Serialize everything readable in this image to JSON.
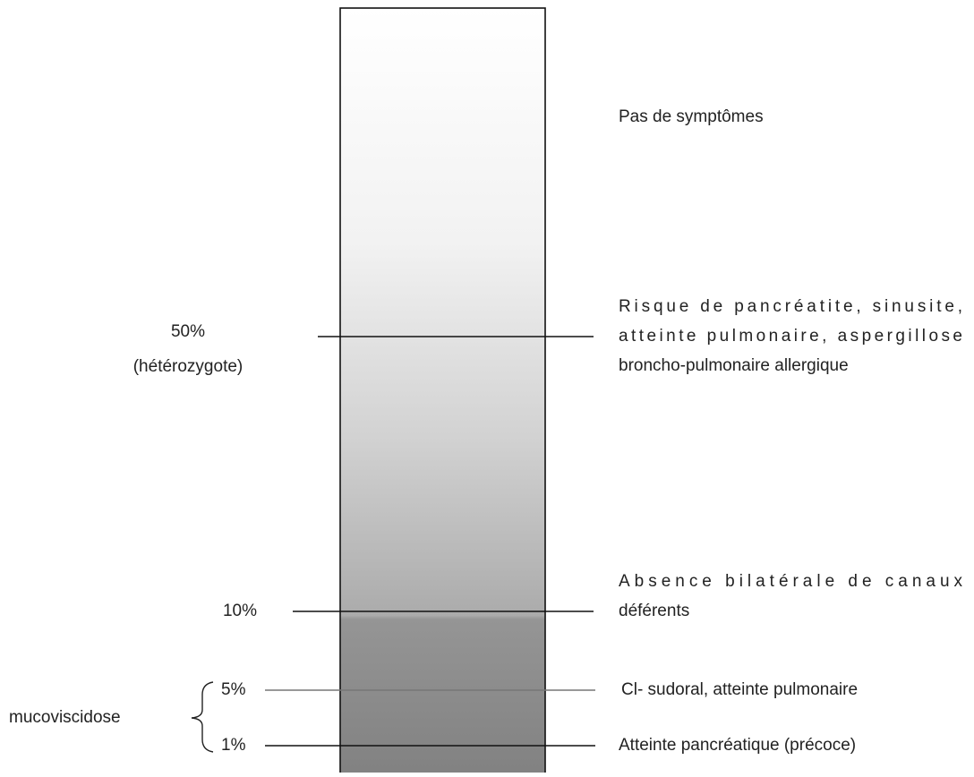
{
  "top": {
    "description": "Pas de symptômes"
  },
  "levels": [
    {
      "label": "50%",
      "sublabel": "(hétérozygote)",
      "description": [
        "Risque de pancréatite, sinusite,",
        "atteinte pulmonaire, aspergillose",
        "broncho-pulmonaire allergique"
      ]
    },
    {
      "label": "10%",
      "description": [
        "Absence bilatérale de canaux",
        "déférents"
      ]
    },
    {
      "label": "5%",
      "description": [
        "Cl- sudoral, atteinte pulmonaire"
      ]
    },
    {
      "label": "1%",
      "description": [
        "Atteinte pancréatique (précoce)"
      ]
    }
  ],
  "group": {
    "label": "mucoviscidose"
  }
}
